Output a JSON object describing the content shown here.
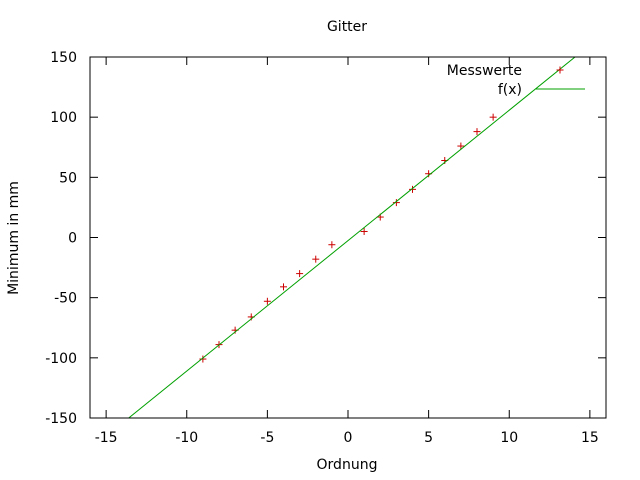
{
  "chart_data": {
    "type": "scatter",
    "title": "Gitter",
    "xlabel": "Ordnung",
    "ylabel": "Minimum in mm",
    "xlim": [
      -16,
      16
    ],
    "ylim": [
      -150,
      150
    ],
    "xticks": [
      -15,
      -10,
      -5,
      0,
      5,
      10,
      15
    ],
    "yticks": [
      -150,
      -100,
      -50,
      0,
      50,
      100,
      150
    ],
    "grid": false,
    "legend_position": "top-right",
    "series": [
      {
        "name": "Messwerte",
        "kind": "points",
        "marker": "plus",
        "color": "#cc0000",
        "x": [
          -9,
          -8,
          -7,
          -6,
          -5,
          -4,
          -3,
          -2,
          -1,
          1,
          2,
          3,
          4,
          5,
          6,
          7,
          8,
          9
        ],
        "y": [
          -101,
          -89,
          -77,
          -66,
          -53,
          -41,
          -30,
          -18,
          -6,
          5,
          17,
          29,
          40,
          53,
          64,
          76,
          88,
          100
        ]
      },
      {
        "name": "f(x)",
        "kind": "line",
        "color": "#00a000",
        "x": [
          -13.6,
          15
        ],
        "y": [
          -150,
          160
        ]
      }
    ]
  }
}
